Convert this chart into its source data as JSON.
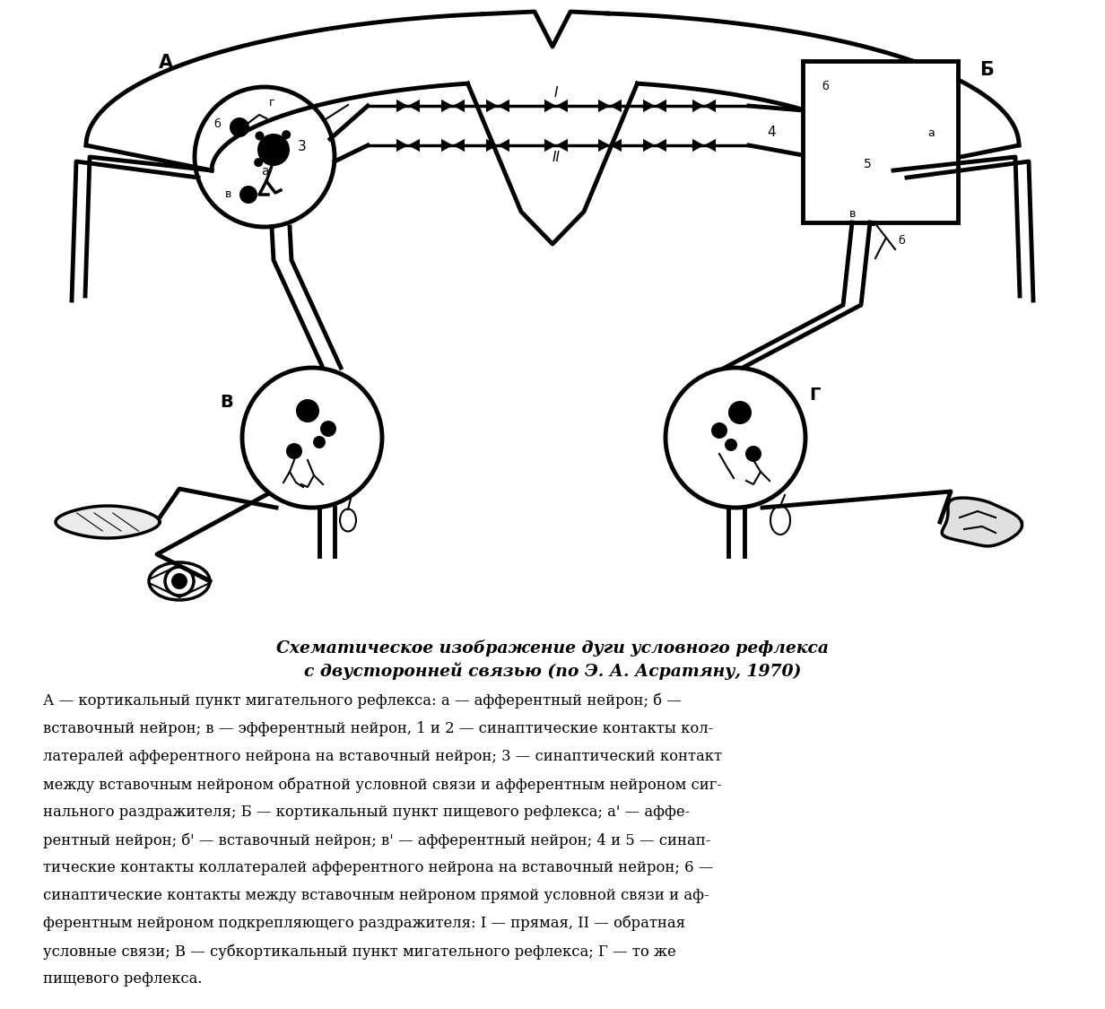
{
  "bg_color": "#ffffff",
  "title_line1": "Схематическое изображение дуги условного рефлекса",
  "title_line2": "с двусторонней связью (по Э. А. Асратяну, 1970)",
  "caption_lines": [
    "А — кортикальный пункт мигательного рефлекса: а — афферентный нейрон; б —",
    "вставочный нейрон; в — эфферентный нейрон, 1 и 2 — синаптические контакты кол-",
    "латералей афферентного нейрона на вставочный нейрон; 3 — синаптический контакт",
    "между вставочным нейроном обратной условной связи и афферентным нейроном сиг-",
    "нального раздражителя; Б — кортикальный пункт пищевого рефлекса; а' — аффе-",
    "рентный нейрон; б' — вставочный нейрон; в' — афферентный нейрон; 4 и 5 — синап-",
    "тические контакты коллатералей афферентного нейрона на вставочный нейрон; 6 —",
    "синаптические контакты между вставочным нейроном прямой условной связи и аф-",
    "ферентным нейроном подкрепляющего раздражителя: I — прямая, II — обратная",
    "условные связи; В — субкортикальный пункт мигательного рефлекса; Г — то же",
    "пищевого рефлекса."
  ]
}
